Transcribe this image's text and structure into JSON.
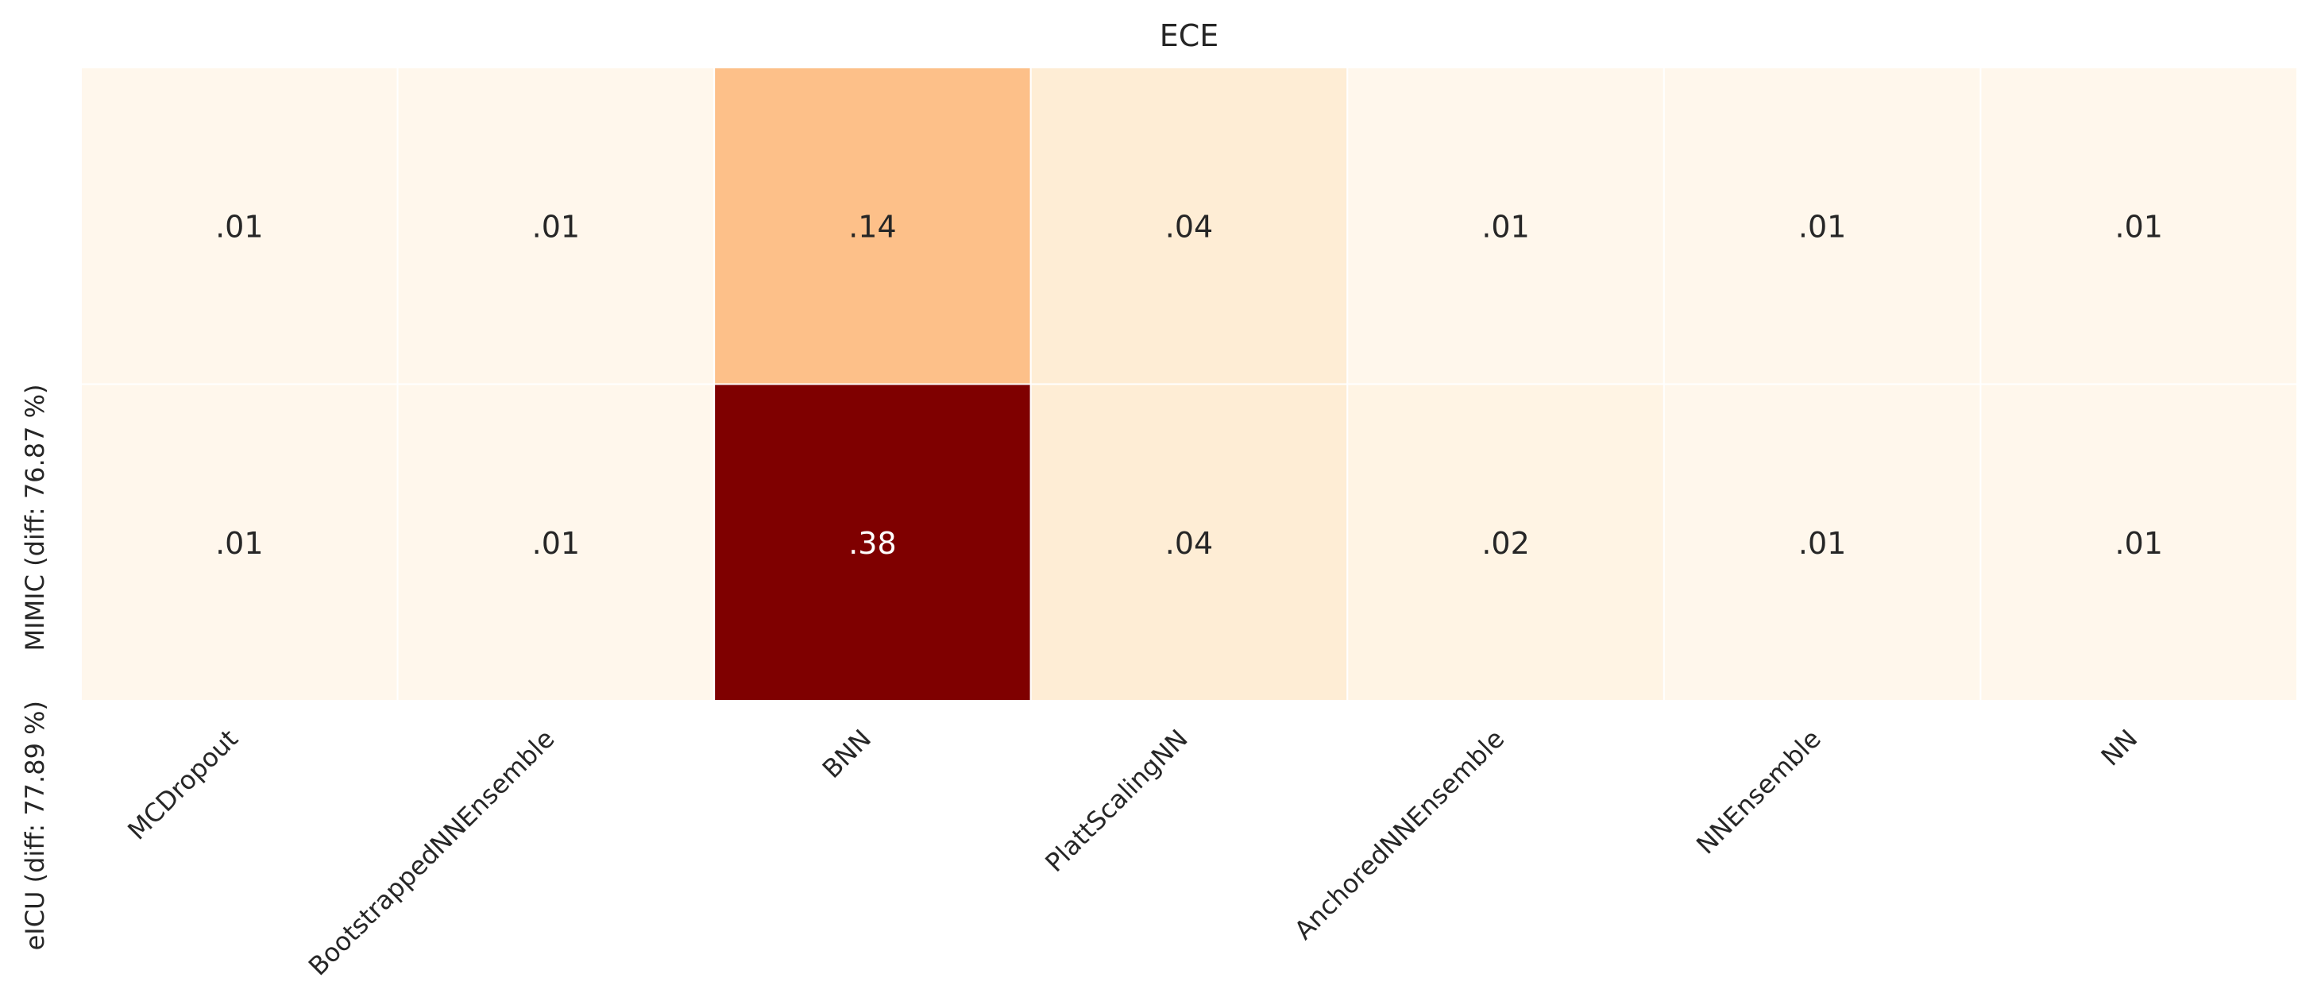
{
  "chart_data": {
    "type": "heatmap",
    "title": "ECE",
    "columns": [
      "MCDropout",
      "BootstrappedNNEnsemble",
      "BNN",
      "PlattScalingNN",
      "AnchoredNNEnsemble",
      "NNEnsemble",
      "NN"
    ],
    "rows": [
      "MIMIC (diff: 76.87 %)",
      "eICU (diff: 77.89 %)"
    ],
    "values": [
      [
        0.01,
        0.01,
        0.14,
        0.04,
        0.01,
        0.01,
        0.01
      ],
      [
        0.01,
        0.01,
        0.38,
        0.04,
        0.02,
        0.01,
        0.01
      ]
    ],
    "labels": [
      [
        ".01",
        ".01",
        ".14",
        ".04",
        ".01",
        ".01",
        ".01"
      ],
      [
        ".01",
        ".01",
        ".38",
        ".04",
        ".02",
        ".01",
        ".01"
      ]
    ],
    "colormap": "OrRd",
    "grid": false,
    "legend": "none"
  }
}
